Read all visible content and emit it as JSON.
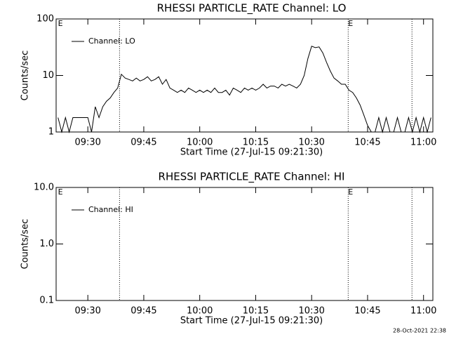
{
  "chart_data": [
    {
      "type": "line",
      "title": "RHESSI PARTICLE_RATE Channel: LO",
      "x_label": "Start Time (27-Jul-15 09:21:30)",
      "y_label": "Counts/sec",
      "log_y": true,
      "ylim": [
        1,
        100
      ],
      "yticks": [
        1,
        10,
        100
      ],
      "xlim": [
        561.5,
        662.5
      ],
      "xticks": [
        {
          "value": 570,
          "label": "09:30"
        },
        {
          "value": 585,
          "label": "09:45"
        },
        {
          "value": 600,
          "label": "10:00"
        },
        {
          "value": 615,
          "label": "10:15"
        },
        {
          "value": 630,
          "label": "10:30"
        },
        {
          "value": 645,
          "label": "10:45"
        },
        {
          "value": 660,
          "label": "11:00"
        }
      ],
      "vlines": [
        578.5,
        639.8,
        656.9
      ],
      "annotations": [
        {
          "x": 562,
          "text": "E"
        },
        {
          "x": 639.8,
          "text": "E"
        }
      ],
      "legend": "upper left",
      "series": [
        {
          "name": "Channel: LO",
          "color": "#000000",
          "x": [
            562,
            563,
            564,
            565,
            566,
            567,
            568,
            569,
            570,
            571,
            572,
            573,
            574,
            575,
            576,
            577,
            578,
            579,
            580,
            581,
            582,
            583,
            584,
            585,
            586,
            587,
            588,
            589,
            590,
            591,
            592,
            593,
            594,
            595,
            596,
            597,
            598,
            599,
            600,
            601,
            602,
            603,
            604,
            605,
            606,
            607,
            608,
            609,
            610,
            611,
            612,
            613,
            614,
            615,
            616,
            617,
            618,
            619,
            620,
            621,
            622,
            623,
            624,
            625,
            626,
            627,
            628,
            629,
            630,
            631,
            632,
            633,
            634,
            635,
            636,
            637,
            638,
            639,
            640,
            641,
            642,
            643,
            644,
            645,
            646,
            647,
            648,
            649,
            650,
            651,
            652,
            653,
            654,
            655,
            656,
            657,
            658,
            659,
            660,
            661,
            662
          ],
          "values": [
            1.8,
            1,
            1.8,
            1,
            1.8,
            1.8,
            1.8,
            1.8,
            1.8,
            1,
            2.8,
            1.8,
            2.8,
            3.5,
            4,
            5,
            6,
            10.5,
            9,
            8.5,
            8,
            9,
            8,
            8.5,
            9.5,
            8,
            8.5,
            9.5,
            7,
            8.5,
            6,
            5.5,
            5,
            5.5,
            5,
            6,
            5.5,
            5,
            5.5,
            5,
            5.5,
            5,
            6,
            5,
            5,
            5.5,
            4.5,
            6,
            5.5,
            5,
            6,
            5.5,
            6,
            5.5,
            6,
            7,
            6,
            6.5,
            6.5,
            6,
            7,
            6.5,
            7,
            6.5,
            6,
            7,
            10,
            20,
            33,
            31,
            32,
            25,
            17,
            12,
            9,
            8,
            7,
            7,
            5.5,
            5,
            4,
            3,
            2,
            1.3,
            1,
            1,
            1.8,
            1,
            1.8,
            1,
            1,
            1.8,
            1,
            1,
            1.8,
            1,
            1.8,
            1,
            1.8,
            1,
            1.8
          ]
        }
      ]
    },
    {
      "type": "line",
      "title": "RHESSI PARTICLE_RATE Channel: HI",
      "x_label": "Start Time (27-Jul-15 09:21:30)",
      "y_label": "Counts/sec",
      "log_y": true,
      "ylim": [
        0.1,
        10
      ],
      "yticks": [
        0.1,
        {
          "value": 1,
          "label": "1.0"
        },
        {
          "value": 10,
          "label": "10.0"
        }
      ],
      "xlim": [
        561.5,
        662.5
      ],
      "xticks": [
        {
          "value": 570,
          "label": "09:30"
        },
        {
          "value": 585,
          "label": "09:45"
        },
        {
          "value": 600,
          "label": "10:00"
        },
        {
          "value": 615,
          "label": "10:15"
        },
        {
          "value": 630,
          "label": "10:30"
        },
        {
          "value": 645,
          "label": "10:45"
        },
        {
          "value": 660,
          "label": "11:00"
        }
      ],
      "vlines": [
        578.5,
        639.8,
        656.9
      ],
      "annotations": [
        {
          "x": 562,
          "text": "E"
        },
        {
          "x": 639.8,
          "text": "E"
        }
      ],
      "legend": "upper left",
      "series": [
        {
          "name": "Channel: HI",
          "color": "#000000",
          "x": [],
          "values": []
        }
      ]
    }
  ],
  "date_stamp": "28-Oct-2021 22:38"
}
